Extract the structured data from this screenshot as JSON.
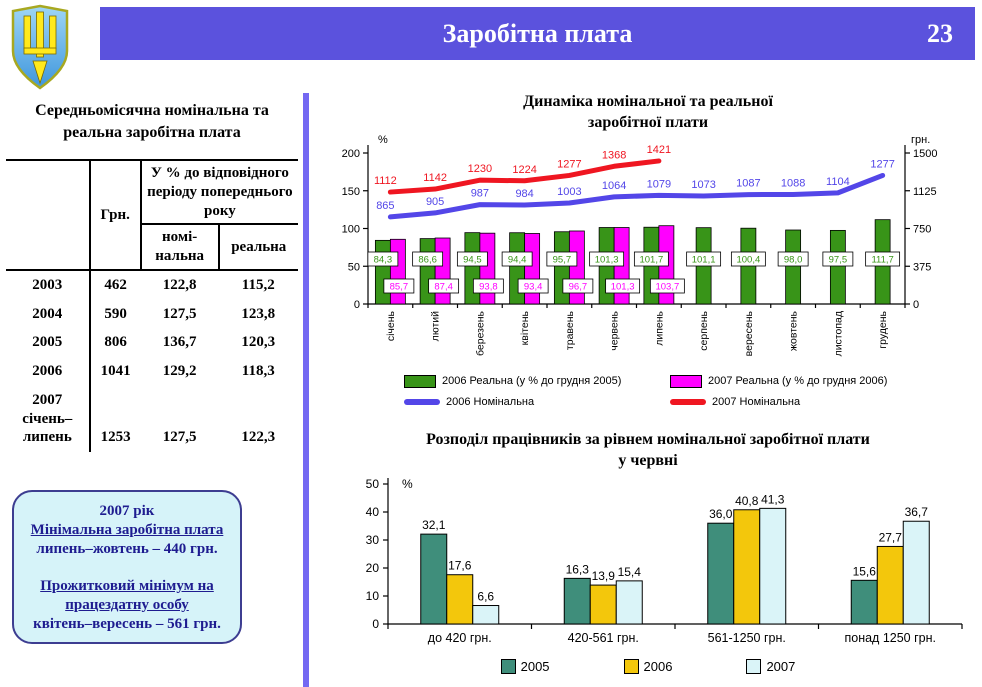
{
  "header": {
    "title": "Заробітна плата",
    "page_number": "23"
  },
  "wage_table": {
    "title": "Середньомісячна номінальна та реальна  заробітна плата",
    "columns": {
      "grn": "Грн.",
      "pct_group": "У % до відповідного періоду попереднього року",
      "nominal": "номі-\nнальна",
      "real": "реальна"
    },
    "rows": [
      {
        "period": "2003",
        "grn": "462",
        "nominal": "122,8",
        "real": "115,2"
      },
      {
        "period": "2004",
        "grn": "590",
        "nominal": "127,5",
        "real": "123,8"
      },
      {
        "period": "2005",
        "grn": "806",
        "nominal": "136,7",
        "real": "120,3"
      },
      {
        "period": "2006",
        "grn": "1041",
        "nominal": "129,2",
        "real": "118,3"
      },
      {
        "period": "2007\nсічень–\nлипень",
        "grn": "1253",
        "nominal": "127,5",
        "real": "122,3"
      }
    ]
  },
  "info_box": {
    "year": "2007 рік",
    "min_wage_title": "Мінімальна заробітна плата",
    "min_wage_value": "липень–жовтень – 440 грн.",
    "subsistence_title": "Прожитковий мінімум на працездатну особу",
    "subsistence_value": "квітень–вересень – 561 грн."
  },
  "chart_data": [
    {
      "type": "bar+line",
      "title_lines": [
        "Динаміка номінальної та реальної",
        "заробітної плати"
      ],
      "categories": [
        "січень",
        "лютий",
        "березень",
        "квітень",
        "травень",
        "червень",
        "липень",
        "серпень",
        "вересень",
        "жовтень",
        "листопад",
        "грудень"
      ],
      "left_axis": {
        "label": "%",
        "ticks": [
          0,
          50,
          100,
          150,
          200
        ],
        "max": 200
      },
      "right_axis": {
        "label": "грн.",
        "ticks": [
          0,
          375,
          750,
          1125,
          1500
        ],
        "max": 1500
      },
      "grid": false,
      "legend_position": "bottom",
      "series": [
        {
          "name": "2006 Реальна (у % до грудня 2005)",
          "kind": "bar",
          "axis": "left",
          "color": "#389418",
          "values": [
            84.3,
            86.6,
            94.5,
            94.4,
            95.7,
            101.3,
            101.7,
            101.1,
            100.4,
            98.0,
            97.5,
            111.7
          ],
          "labels": [
            "84,3",
            "86,6",
            "94,5",
            "94,4",
            "95,7",
            "101,3",
            "101,7",
            "101,1",
            "100,4",
            "98,0",
            "97,5",
            "111,7"
          ]
        },
        {
          "name": "2007 Реальна (у % до грудня 2006)",
          "kind": "bar",
          "axis": "left",
          "color": "#ff00ff",
          "values": [
            85.7,
            87.4,
            93.8,
            93.4,
            96.7,
            101.3,
            103.7
          ],
          "labels": [
            "85,7",
            "87,4",
            "93,8",
            "93,4",
            "96,7",
            "101,3",
            "103,7"
          ]
        },
        {
          "name": "2006 Номінальна",
          "kind": "line",
          "axis": "right",
          "color": "#5346e8",
          "values": [
            865,
            905,
            987,
            984,
            1003,
            1064,
            1079,
            1073,
            1087,
            1088,
            1104,
            1277
          ]
        },
        {
          "name": "2007 Номінальна",
          "kind": "line",
          "axis": "right",
          "color": "#ef1621",
          "values": [
            1112,
            1142,
            1230,
            1224,
            1277,
            1368,
            1421
          ]
        }
      ]
    },
    {
      "type": "bar",
      "title_lines": [
        "Розподіл працівників за рівнем номінальної заробітної плати",
        "у червні"
      ],
      "categories": [
        "до 420 грн.",
        "420-561 грн.",
        "561-1250 грн.",
        "понад 1250 грн."
      ],
      "ylabel": "%",
      "ylim": [
        0,
        50
      ],
      "yticks": [
        0,
        10,
        20,
        30,
        40,
        50
      ],
      "grid": false,
      "legend_position": "bottom",
      "series": [
        {
          "name": "2005",
          "color": "#3f8e7b",
          "values": [
            32.1,
            16.3,
            36.0,
            15.6
          ],
          "labels": [
            "32,1",
            "16,3",
            "36,0",
            "15,6"
          ]
        },
        {
          "name": "2006",
          "color": "#f3c70c",
          "values": [
            17.6,
            13.9,
            40.8,
            27.7
          ],
          "labels": [
            "17,6",
            "13,9",
            "40,8",
            "27,7"
          ]
        },
        {
          "name": "2007",
          "color": "#daf4f8",
          "values": [
            6.6,
            15.4,
            41.3,
            36.7
          ],
          "labels": [
            "6,6",
            "15,4",
            "41,3",
            "36,7"
          ]
        }
      ]
    }
  ]
}
